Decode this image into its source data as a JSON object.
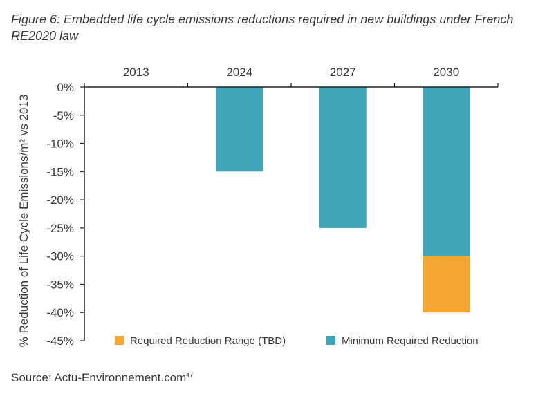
{
  "chart_data": {
    "type": "bar",
    "title": "Figure 6: Embedded life cycle emissions reductions required in new buildings under French RE2020 law",
    "xlabel": "",
    "ylabel": "% Reduction of Life Cycle Emissions/m² vs 2013",
    "categories": [
      "2013",
      "2024",
      "2027",
      "2030"
    ],
    "ylim": [
      -45,
      0
    ],
    "y_ticks": [
      0,
      -5,
      -10,
      -15,
      -20,
      -25,
      -30,
      -35,
      -40,
      -45
    ],
    "y_tick_labels": [
      "0%",
      "-5%",
      "-10%",
      "-15%",
      "-20%",
      "-25%",
      "-30%",
      "-35%",
      "-40%",
      "-45%"
    ],
    "stacked": true,
    "series": [
      {
        "name": "Minimum Required Reduction",
        "color": "#3ea6b8",
        "values": [
          0,
          -15,
          -25,
          -30
        ]
      },
      {
        "name": "Required Reduction Range (TBD)",
        "color": "#f5a733",
        "values": [
          0,
          0,
          0,
          -10
        ]
      }
    ],
    "legend": {
      "placement": "bottom",
      "items": [
        {
          "label": "Required Reduction Range (TBD)",
          "color": "#f5a733"
        },
        {
          "label": "Minimum Required Reduction",
          "color": "#3ea6b8"
        }
      ]
    },
    "grid": false,
    "category_axis_position": "top"
  },
  "source": {
    "text": "Source: Actu-Environnement.com",
    "footnote": "47"
  }
}
